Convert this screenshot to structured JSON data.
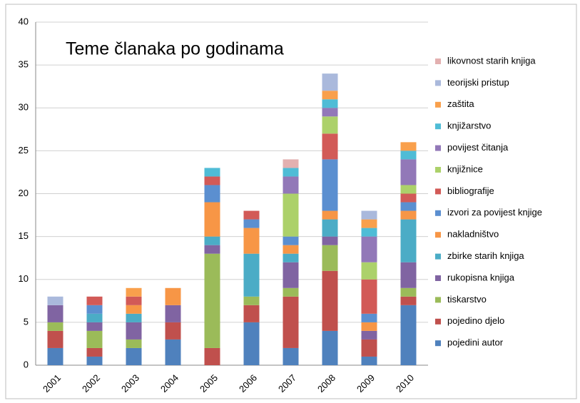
{
  "chart_data": {
    "type": "stacked_bar",
    "title": "Teme članaka po godinama",
    "categories": [
      "2001",
      "2002",
      "2003",
      "2004",
      "2005",
      "2006",
      "2007",
      "2008",
      "2009",
      "2010"
    ],
    "series": [
      {
        "name": "pojedini autor",
        "color": "#4f81bd",
        "values": [
          2,
          1,
          2,
          3,
          0,
          5,
          2,
          4,
          1,
          7
        ]
      },
      {
        "name": "pojedino djelo",
        "color": "#c0504d",
        "values": [
          2,
          1,
          0,
          2,
          2,
          2,
          6,
          7,
          2,
          1
        ]
      },
      {
        "name": "tiskarstvo",
        "color": "#9bbb59",
        "values": [
          1,
          2,
          1,
          0,
          11,
          1,
          1,
          3,
          0,
          1
        ]
      },
      {
        "name": "rukopisna knjiga",
        "color": "#8064a2",
        "values": [
          2,
          1,
          2,
          2,
          1,
          0,
          3,
          1,
          1,
          3
        ]
      },
      {
        "name": "zbirke starih knjiga",
        "color": "#4bacc6",
        "values": [
          0,
          1,
          1,
          0,
          1,
          5,
          1,
          2,
          0,
          5
        ]
      },
      {
        "name": "nakladništvo",
        "color": "#f79646",
        "values": [
          0,
          0,
          1,
          2,
          4,
          3,
          1,
          1,
          1,
          1
        ]
      },
      {
        "name": "izvori za povijest knjige",
        "color": "#5b8fd0",
        "values": [
          0,
          1,
          0,
          0,
          2,
          1,
          1,
          6,
          1,
          1
        ]
      },
      {
        "name": "bibliografije",
        "color": "#d25a57",
        "values": [
          0,
          1,
          1,
          0,
          1,
          1,
          0,
          3,
          4,
          1
        ]
      },
      {
        "name": "knjižnice",
        "color": "#acd16a",
        "values": [
          0,
          0,
          0,
          0,
          0,
          0,
          5,
          2,
          2,
          1
        ]
      },
      {
        "name": "povijest čitanja",
        "color": "#9278b8",
        "values": [
          0,
          0,
          0,
          0,
          0,
          0,
          2,
          1,
          3,
          3
        ]
      },
      {
        "name": "knjižarstvo",
        "color": "#4fbcd6",
        "values": [
          0,
          0,
          0,
          0,
          1,
          0,
          1,
          1,
          1,
          1
        ]
      },
      {
        "name": "zaštita",
        "color": "#f9a04c",
        "values": [
          0,
          0,
          1,
          0,
          0,
          0,
          0,
          1,
          1,
          1
        ]
      },
      {
        "name": "teorijski pristup",
        "color": "#aab9dc",
        "values": [
          1,
          0,
          0,
          0,
          0,
          0,
          0,
          2,
          1,
          0
        ]
      },
      {
        "name": "likovnost starih knjiga",
        "color": "#e3b0b0",
        "values": [
          0,
          0,
          0,
          0,
          0,
          0,
          1,
          0,
          0,
          0
        ]
      }
    ],
    "ylim": [
      0,
      40
    ],
    "yticks": [
      0,
      5,
      10,
      15,
      20,
      25,
      30,
      35,
      40
    ],
    "grid": true,
    "legend": "right"
  }
}
